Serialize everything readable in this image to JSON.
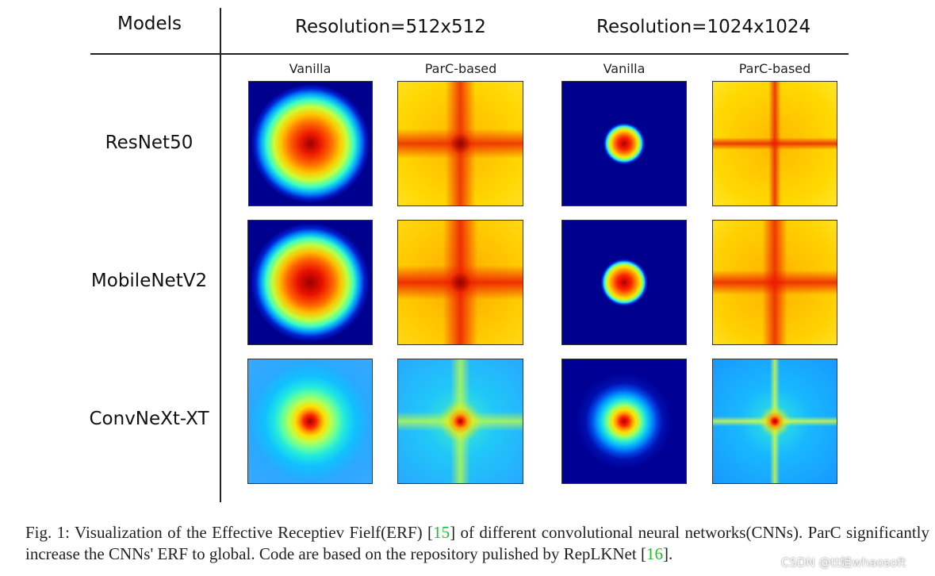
{
  "table": {
    "models_header": "Models",
    "res1_header": "Resolution=512x512",
    "res2_header": "Resolution=1024x1024",
    "col_vanilla_1": "Vanilla",
    "col_parc_1": "ParC-based",
    "col_vanilla_2": "Vanilla",
    "col_parc_2": "ParC-based",
    "rows": [
      {
        "model": "ResNet50"
      },
      {
        "model": "MobileNetV2"
      },
      {
        "model": "ConvNeXt-XT"
      }
    ]
  },
  "caption": {
    "part1": "Fig. 1: Visualization of the Effective Receptiev Fielf(ERF) [",
    "ref1": "15",
    "part2": "] of different convolutional neural networks(CNNs). ParC significantly increase the CNNs' ERF to global. Code are based on the repository pulished by RepLKNet [",
    "ref2": "16",
    "part3": "]."
  },
  "watermark": "CSDN @tt姐whaosoft",
  "colors": {
    "ref_link": "#1fbf2a",
    "jet_dark_blue": "#00008f",
    "jet_red": "#cc0000"
  }
}
